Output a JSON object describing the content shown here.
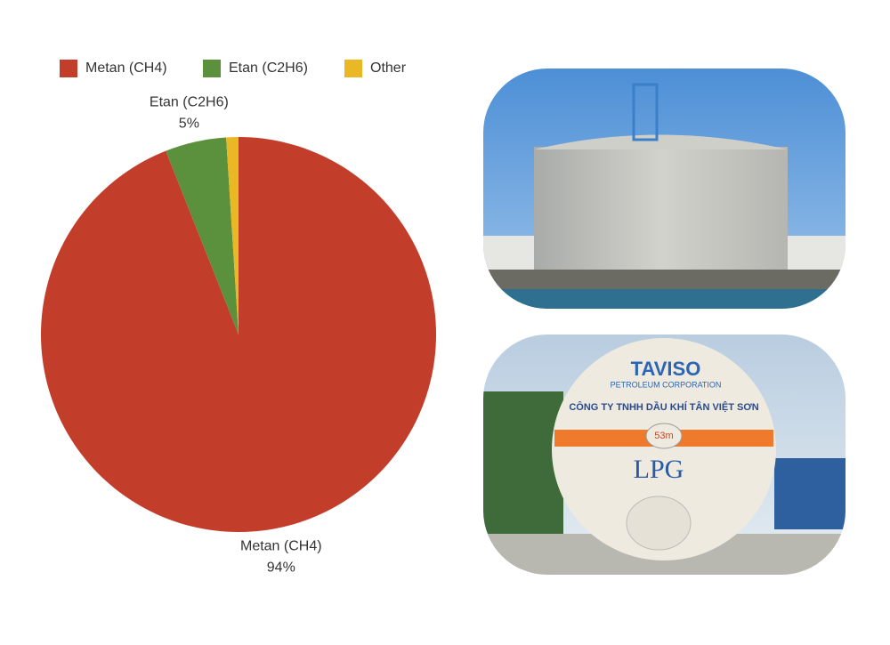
{
  "chart_data": {
    "type": "pie",
    "categories": [
      "Metan (CH4)",
      "Etan (C2H6)",
      "Other"
    ],
    "values": [
      94,
      5,
      1
    ],
    "value_labels": [
      "94%",
      "5%",
      null
    ],
    "colors": [
      "#c23d2a",
      "#5b913c",
      "#e9b824"
    ],
    "legend": "top"
  },
  "photos": {
    "truck_brand": "TAVISO",
    "truck_sub": "PETROLEUM CORPORATION",
    "truck_company": "CÔNG TY TNHH DẦU KHÍ TÂN VIỆT SƠN",
    "truck_volume": "53m",
    "truck_product": "LPG"
  }
}
